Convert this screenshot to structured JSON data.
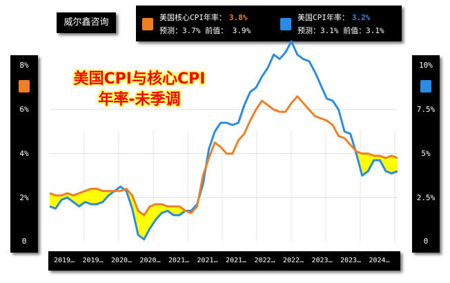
{
  "brand": "威尔鑫咨询",
  "legend": {
    "core": {
      "name": "美国核心CPI年率：",
      "value": "3.8%",
      "forecast": "预测：3.7%",
      "previous": "前值： 3.9%",
      "color": "#f07f24"
    },
    "cpi": {
      "name": "美国CPI年率：",
      "value": "3.2%",
      "forecast": "预测：3.1%",
      "previous": "前值：3.1%",
      "color": "#2a8be6"
    }
  },
  "chart_data": {
    "type": "line",
    "title": [
      "美国CPI与核心CPI",
      "年率-未季调"
    ],
    "x_tick_labels": [
      "2019…",
      "2019…",
      "2020…",
      "2020…",
      "2021…",
      "2021…",
      "2021…",
      "2022…",
      "2022…",
      "2023…",
      "2023…",
      "2024…"
    ],
    "left_axis": {
      "ticks": [
        "0",
        "2%",
        "4%",
        "6%",
        "8%"
      ],
      "ylim": [
        0,
        8
      ]
    },
    "right_axis": {
      "ticks": [
        "0",
        "2.5%",
        "5%",
        "7.5%",
        "10%"
      ],
      "ylim": [
        0,
        10
      ]
    },
    "grid": true,
    "fill_between": {
      "color": "#ffff00",
      "note": "core above cpi"
    },
    "series": [
      {
        "name": "美国核心CPI年率",
        "color": "#f07f24",
        "values": [
          2.2,
          2.1,
          2.1,
          2.2,
          2.1,
          2.2,
          2.3,
          2.4,
          2.4,
          2.3,
          2.3,
          2.3,
          2.3,
          2.4,
          2.1,
          1.4,
          1.2,
          1.6,
          1.7,
          1.7,
          1.6,
          1.6,
          1.6,
          1.4,
          1.3,
          1.6,
          3.0,
          3.8,
          4.5,
          4.3,
          4.0,
          4.0,
          4.6,
          4.9,
          5.5,
          6.0,
          6.4,
          6.2,
          6.0,
          5.9,
          5.9,
          6.3,
          6.6,
          6.3,
          6.0,
          5.7,
          5.6,
          5.5,
          5.3,
          4.8,
          4.7,
          4.4,
          4.1,
          4.0,
          4.0,
          3.9,
          3.9,
          3.8,
          3.9,
          3.8
        ]
      },
      {
        "name": "美国CPI年率",
        "color": "#2a8be6",
        "values": [
          1.6,
          1.5,
          1.9,
          2.0,
          1.8,
          1.6,
          1.8,
          1.7,
          1.7,
          1.8,
          2.1,
          2.3,
          2.5,
          2.3,
          1.5,
          0.3,
          0.1,
          0.6,
          1.0,
          1.3,
          1.4,
          1.2,
          1.2,
          1.4,
          1.4,
          1.7,
          2.6,
          4.2,
          5.0,
          5.4,
          5.4,
          5.3,
          5.4,
          6.2,
          6.8,
          7.0,
          7.5,
          7.9,
          8.5,
          8.3,
          8.6,
          9.1,
          8.5,
          8.3,
          8.2,
          7.7,
          7.1,
          6.5,
          6.4,
          6.0,
          5.0,
          4.9,
          4.0,
          3.0,
          3.2,
          3.7,
          3.7,
          3.2,
          3.1,
          3.2
        ]
      }
    ]
  }
}
